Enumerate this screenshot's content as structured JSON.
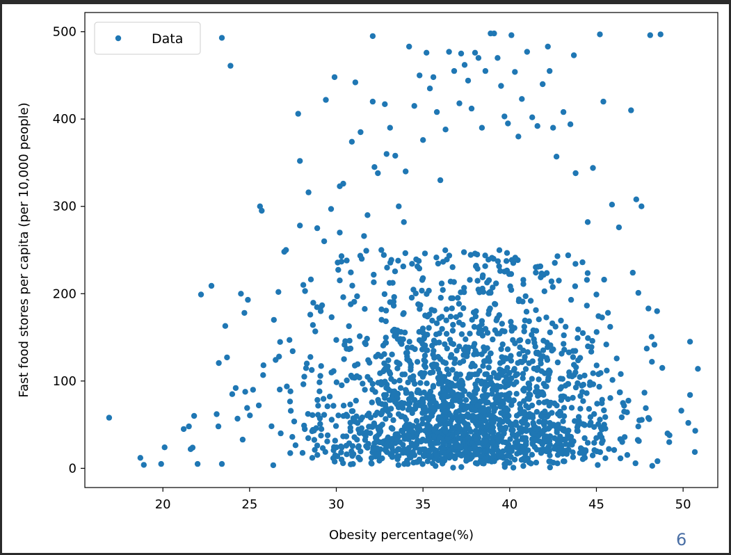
{
  "page": {
    "number": "6"
  },
  "chart_data": {
    "type": "scatter",
    "title": "",
    "xlabel": "Obesity percentage(%)",
    "ylabel": "Fast food stores per capita (per 10,000 people)",
    "xlim": [
      15.5,
      52
    ],
    "ylim": [
      -22,
      522
    ],
    "xticks": [
      20,
      25,
      30,
      35,
      40,
      45,
      50
    ],
    "yticks": [
      0,
      100,
      200,
      300,
      400,
      500
    ],
    "grid": false,
    "legend": {
      "position": "top-left",
      "entries": [
        "Data"
      ]
    },
    "colors": {
      "marker": "#1f77b4",
      "axis": "#000000"
    },
    "series": [
      {
        "name": "Data",
        "points": [
          [
            16.9,
            58
          ],
          [
            18.7,
            12
          ],
          [
            18.9,
            4
          ],
          [
            19.9,
            5
          ],
          [
            20.1,
            24
          ],
          [
            21.2,
            45
          ],
          [
            21.5,
            48
          ],
          [
            21.6,
            22
          ],
          [
            21.8,
            60
          ],
          [
            22.0,
            5
          ],
          [
            22.2,
            199
          ],
          [
            22.8,
            209
          ],
          [
            23.1,
            62
          ],
          [
            23.2,
            48
          ],
          [
            23.4,
            5
          ],
          [
            23.4,
            493
          ],
          [
            23.6,
            163
          ],
          [
            23.7,
            127
          ],
          [
            23.9,
            461
          ],
          [
            24.0,
            85
          ],
          [
            24.2,
            92
          ],
          [
            24.5,
            200
          ],
          [
            24.7,
            178
          ],
          [
            24.9,
            193
          ],
          [
            25.2,
            90
          ],
          [
            25.6,
            300
          ],
          [
            25.7,
            295
          ],
          [
            25.8,
            118
          ],
          [
            26.4,
            170
          ],
          [
            26.7,
            128
          ],
          [
            27.0,
            248
          ],
          [
            27.1,
            250
          ],
          [
            27.3,
            147
          ],
          [
            27.8,
            406
          ],
          [
            27.9,
            352
          ],
          [
            27.9,
            278
          ],
          [
            28.1,
            210
          ],
          [
            28.2,
            203
          ],
          [
            28.3,
            120
          ],
          [
            28.4,
            316
          ],
          [
            28.5,
            176
          ],
          [
            28.9,
            275
          ],
          [
            29.1,
            180
          ],
          [
            29.3,
            260
          ],
          [
            29.4,
            422
          ],
          [
            29.7,
            297
          ],
          [
            29.9,
            448
          ],
          [
            30.0,
            147
          ],
          [
            30.2,
            323
          ],
          [
            30.2,
            270
          ],
          [
            30.3,
            243
          ],
          [
            30.4,
            326
          ],
          [
            30.4,
            196
          ],
          [
            30.6,
            238
          ],
          [
            30.9,
            374
          ],
          [
            31.1,
            442
          ],
          [
            31.2,
            197
          ],
          [
            31.4,
            385
          ],
          [
            31.6,
            266
          ],
          [
            31.8,
            290
          ],
          [
            32.1,
            495
          ],
          [
            32.1,
            420
          ],
          [
            32.2,
            345
          ],
          [
            32.4,
            338
          ],
          [
            32.6,
            250
          ],
          [
            32.8,
            417
          ],
          [
            32.9,
            360
          ],
          [
            33.1,
            390
          ],
          [
            33.4,
            358
          ],
          [
            33.6,
            300
          ],
          [
            33.9,
            282
          ],
          [
            34.0,
            340
          ],
          [
            34.2,
            483
          ],
          [
            34.5,
            415
          ],
          [
            34.8,
            450
          ],
          [
            35.0,
            376
          ],
          [
            35.2,
            476
          ],
          [
            35.4,
            435
          ],
          [
            35.6,
            448
          ],
          [
            35.8,
            408
          ],
          [
            36.0,
            330
          ],
          [
            36.3,
            388
          ],
          [
            36.5,
            477
          ],
          [
            36.8,
            455
          ],
          [
            37.1,
            418
          ],
          [
            37.2,
            475
          ],
          [
            37.4,
            462
          ],
          [
            37.6,
            444
          ],
          [
            37.8,
            412
          ],
          [
            38.0,
            476
          ],
          [
            38.2,
            470
          ],
          [
            38.4,
            390
          ],
          [
            38.6,
            455
          ],
          [
            38.9,
            498
          ],
          [
            39.1,
            498
          ],
          [
            39.3,
            470
          ],
          [
            39.5,
            438
          ],
          [
            39.7,
            403
          ],
          [
            39.9,
            395
          ],
          [
            40.1,
            496
          ],
          [
            40.3,
            454
          ],
          [
            40.5,
            380
          ],
          [
            40.7,
            423
          ],
          [
            41.0,
            477
          ],
          [
            41.3,
            402
          ],
          [
            41.6,
            392
          ],
          [
            41.9,
            440
          ],
          [
            42.2,
            483
          ],
          [
            42.3,
            455
          ],
          [
            42.5,
            390
          ],
          [
            42.7,
            357
          ],
          [
            43.1,
            408
          ],
          [
            43.5,
            394
          ],
          [
            43.7,
            473
          ],
          [
            43.8,
            338
          ],
          [
            44.2,
            236
          ],
          [
            44.5,
            282
          ],
          [
            44.8,
            344
          ],
          [
            45.0,
            199
          ],
          [
            45.2,
            497
          ],
          [
            45.4,
            420
          ],
          [
            45.6,
            112
          ],
          [
            45.9,
            302
          ],
          [
            46.3,
            276
          ],
          [
            46.6,
            65
          ],
          [
            47.0,
            410
          ],
          [
            47.1,
            224
          ],
          [
            47.3,
            308
          ],
          [
            47.6,
            300
          ],
          [
            48.0,
            183
          ],
          [
            48.1,
            496
          ],
          [
            48.2,
            122
          ],
          [
            48.5,
            180
          ],
          [
            48.7,
            497
          ],
          [
            48.8,
            115
          ],
          [
            49.1,
            40
          ],
          [
            49.2,
            30
          ],
          [
            49.9,
            66
          ],
          [
            50.3,
            52
          ],
          [
            50.4,
            145
          ],
          [
            50.4,
            84
          ],
          [
            50.7,
            43
          ]
        ],
        "note_dense_cluster": ""
      }
    ]
  }
}
